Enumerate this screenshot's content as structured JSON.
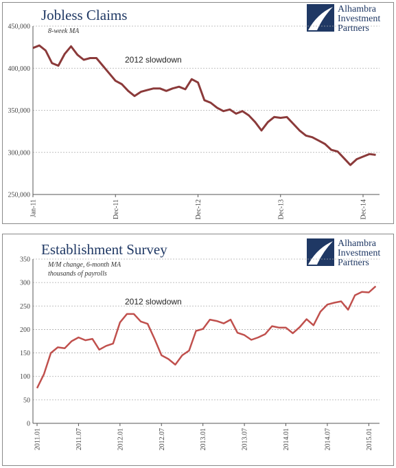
{
  "chart_data": [
    {
      "type": "line",
      "title": "Jobless Claims",
      "subtitle": [
        "8-week MA"
      ],
      "annotation": "2012 slowdown",
      "logo": [
        "Alhambra",
        "Investment",
        "Partners"
      ],
      "categories": [
        "Jan-11",
        null,
        null,
        null,
        null,
        null,
        null,
        null,
        null,
        null,
        null,
        null,
        null,
        "Dec-11",
        null,
        null,
        null,
        null,
        null,
        null,
        null,
        null,
        null,
        null,
        null,
        null,
        "Dec-12",
        null,
        null,
        null,
        null,
        null,
        null,
        null,
        null,
        null,
        null,
        null,
        null,
        "Dec-13",
        null,
        null,
        null,
        null,
        null,
        null,
        null,
        null,
        null,
        null,
        null,
        null,
        "Dec-14",
        null,
        null
      ],
      "values": [
        424000,
        427000,
        421000,
        406000,
        403000,
        417000,
        426000,
        416000,
        410000,
        412000,
        412000,
        403000,
        394000,
        385000,
        381000,
        373000,
        367000,
        372000,
        374000,
        376000,
        376000,
        373000,
        376000,
        378000,
        375000,
        387000,
        383000,
        362000,
        359000,
        353000,
        349000,
        351000,
        346000,
        349000,
        344000,
        336000,
        326000,
        336000,
        342000,
        341000,
        342000,
        334000,
        326000,
        320000,
        318000,
        314000,
        310000,
        303000,
        301000,
        293000,
        285000,
        292000,
        295000,
        298000,
        297000
      ],
      "color": "#8b3a3a",
      "ylim": [
        250000,
        450000
      ],
      "yticks": [
        {
          "value": 250000,
          "label": "250,000"
        },
        {
          "value": 300000,
          "label": "300,000"
        },
        {
          "value": 350000,
          "label": "350,000"
        },
        {
          "value": 400000,
          "label": "400,000"
        },
        {
          "value": 450000,
          "label": "450,000"
        }
      ],
      "grid": true
    },
    {
      "type": "line",
      "title": "Establishment Survey",
      "subtitle": [
        "M/M change, 6-month MA",
        "thousands of payrolls"
      ],
      "annotation": "2012 slowdown",
      "logo": [
        "Alhambra",
        "Investment",
        "Partners"
      ],
      "categories": [
        "2011.01",
        null,
        null,
        null,
        null,
        null,
        "2011.07",
        null,
        null,
        null,
        null,
        null,
        "2012.01",
        null,
        null,
        null,
        null,
        null,
        "2012.07",
        null,
        null,
        null,
        null,
        null,
        "2013.01",
        null,
        null,
        null,
        null,
        null,
        "2013.07",
        null,
        null,
        null,
        null,
        null,
        "2014.01",
        null,
        null,
        null,
        null,
        null,
        "2014.07",
        null,
        null,
        null,
        null,
        null,
        "2015.01",
        null
      ],
      "values": [
        75,
        105,
        150,
        162,
        160,
        175,
        183,
        177,
        180,
        157,
        165,
        170,
        215,
        233,
        233,
        217,
        212,
        180,
        145,
        137,
        125,
        145,
        155,
        197,
        201,
        221,
        218,
        213,
        221,
        193,
        188,
        178,
        183,
        190,
        207,
        204,
        204,
        192,
        205,
        222,
        209,
        238,
        253,
        257,
        260,
        242,
        273,
        280,
        279,
        292
      ],
      "color": "#c0504d",
      "ylim": [
        0,
        350
      ],
      "yticks": [
        0,
        50,
        100,
        150,
        200,
        250,
        300,
        350
      ],
      "grid": true
    }
  ]
}
